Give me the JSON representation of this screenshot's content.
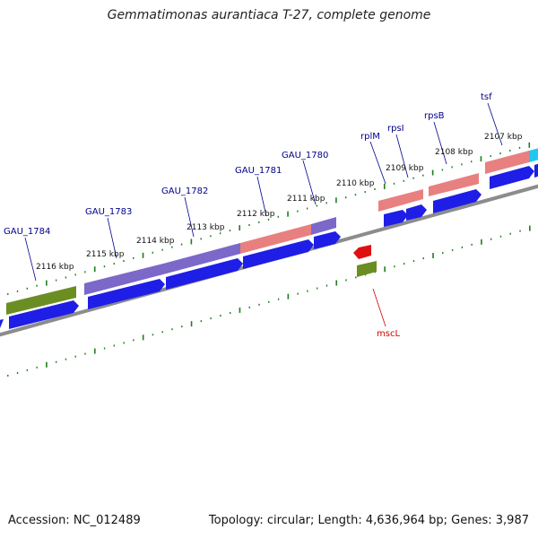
{
  "title": "Gemmatimonas aurantiaca T-27, complete genome",
  "footer": {
    "accession": "Accession: NC_012489",
    "topology": "Topology: circular; Length: 4,636,964 bp; Genes: 3,987"
  },
  "colors": {
    "background": "#ffffff",
    "backbone": "#8c8c8c",
    "tick": "#1e7d1e",
    "label_text": "#00008b",
    "cds": "#1e1ee6",
    "gene_olive": "#6b8e23",
    "gene_purple": "#7b68c8",
    "gene_pink": "#e88080",
    "gene_cyan": "#1ec8f0",
    "gene_red": "#e01010",
    "leader_red": "#d00000"
  },
  "scale_labels": [
    "2116 kbp",
    "2115 kbp",
    "2114 kbp",
    "2113 kbp",
    "2112 kbp",
    "2111 kbp",
    "2110 kbp",
    "2109 kbp",
    "2108 kbp",
    "2107 kbp"
  ],
  "gene_labels": [
    "GAU_1784",
    "GAU_1783",
    "GAU_1782",
    "GAU_1781",
    "GAU_1780",
    "rplM",
    "rpsI",
    "rpsB",
    "tsf",
    "mscL"
  ]
}
